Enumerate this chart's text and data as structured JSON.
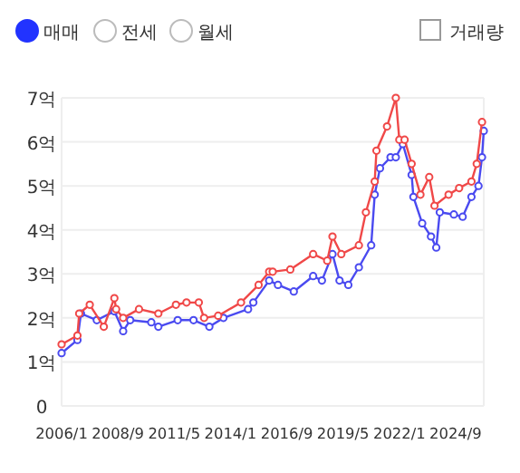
{
  "chart_data": {
    "type": "line",
    "annotations": [
      "매매",
      "전세",
      "월세",
      "거래량"
    ],
    "xlim": [
      "2006-01",
      "2026-01"
    ],
    "xticks": [
      {
        "value": "2006-01",
        "label": "2006/1"
      },
      {
        "value": "2008-09",
        "label": "2008/9"
      },
      {
        "value": "2011-05",
        "label": "2011/5"
      },
      {
        "value": "2014-01",
        "label": "2014/1"
      },
      {
        "value": "2016-09",
        "label": "2016/9"
      },
      {
        "value": "2019-05",
        "label": "2019/5"
      },
      {
        "value": "2022-01",
        "label": "2022/1"
      },
      {
        "value": "2024-09",
        "label": "2024/9"
      }
    ],
    "ylim": [
      0,
      7
    ],
    "yticks": [
      0,
      {
        "value": 1,
        "label": "1억"
      },
      {
        "value": 2,
        "label": "2억"
      },
      {
        "value": 3,
        "label": "3억"
      },
      {
        "value": 4,
        "label": "4억"
      },
      {
        "value": 5,
        "label": "5억"
      },
      {
        "value": 6,
        "label": "6억"
      },
      {
        "value": 7,
        "label": "7억"
      }
    ],
    "grid": "y",
    "marker": "circle",
    "line_style": "solid",
    "series": [
      {
        "color": "#f04848",
        "x": [
          "2006-01",
          "2006-10",
          "2006-11",
          "2007-05",
          "2008-01",
          "2008-07",
          "2008-08",
          "2008-12",
          "2009-09",
          "2010-08",
          "2011-06",
          "2011-12",
          "2012-07",
          "2012-10",
          "2013-06",
          "2014-07",
          "2015-05",
          "2015-11",
          "2016-01",
          "2016-11",
          "2017-12",
          "2018-08",
          "2018-11",
          "2019-04",
          "2020-02",
          "2020-06",
          "2020-11",
          "2020-12",
          "2021-06",
          "2021-11",
          "2022-01",
          "2022-04",
          "2022-08",
          "2023-01",
          "2023-06",
          "2023-09",
          "2024-05",
          "2024-11",
          "2025-06",
          "2025-09",
          "2025-12"
        ],
        "values": [
          1.4,
          1.6,
          2.1,
          2.3,
          1.8,
          2.45,
          2.2,
          2.0,
          2.2,
          2.1,
          2.3,
          2.35,
          2.35,
          2.0,
          2.05,
          2.35,
          2.75,
          3.05,
          3.05,
          3.1,
          3.45,
          3.3,
          3.85,
          3.45,
          3.65,
          4.4,
          5.1,
          5.8,
          6.35,
          7.0,
          6.05,
          6.05,
          5.5,
          4.8,
          5.2,
          4.55,
          4.8,
          4.95,
          5.1,
          5.5,
          6.45
        ]
      },
      {
        "color": "#4a4af0",
        "x": [
          "2006-01",
          "2006-10",
          "2006-12",
          "2007-09",
          "2008-07",
          "2008-12",
          "2009-04",
          "2010-04",
          "2010-08",
          "2011-07",
          "2012-04",
          "2013-01",
          "2013-09",
          "2014-11",
          "2015-02",
          "2015-11",
          "2016-04",
          "2017-01",
          "2017-12",
          "2018-05",
          "2018-11",
          "2019-03",
          "2019-08",
          "2020-02",
          "2020-09",
          "2020-11",
          "2021-02",
          "2021-08",
          "2021-11",
          "2022-03",
          "2022-08",
          "2022-09",
          "2023-02",
          "2023-07",
          "2023-10",
          "2023-12",
          "2024-08",
          "2025-01",
          "2025-06",
          "2025-10",
          "2025-12",
          "2026-01"
        ],
        "values": [
          1.2,
          1.5,
          2.1,
          1.95,
          2.15,
          1.7,
          1.95,
          1.9,
          1.8,
          1.95,
          1.95,
          1.8,
          2.0,
          2.2,
          2.35,
          2.85,
          2.75,
          2.6,
          2.95,
          2.85,
          3.45,
          2.85,
          2.75,
          3.15,
          3.65,
          4.8,
          5.4,
          5.65,
          5.65,
          5.95,
          5.25,
          4.75,
          4.15,
          3.85,
          3.6,
          4.4,
          4.35,
          4.3,
          4.75,
          5.0,
          5.65,
          6.25
        ]
      }
    ]
  }
}
